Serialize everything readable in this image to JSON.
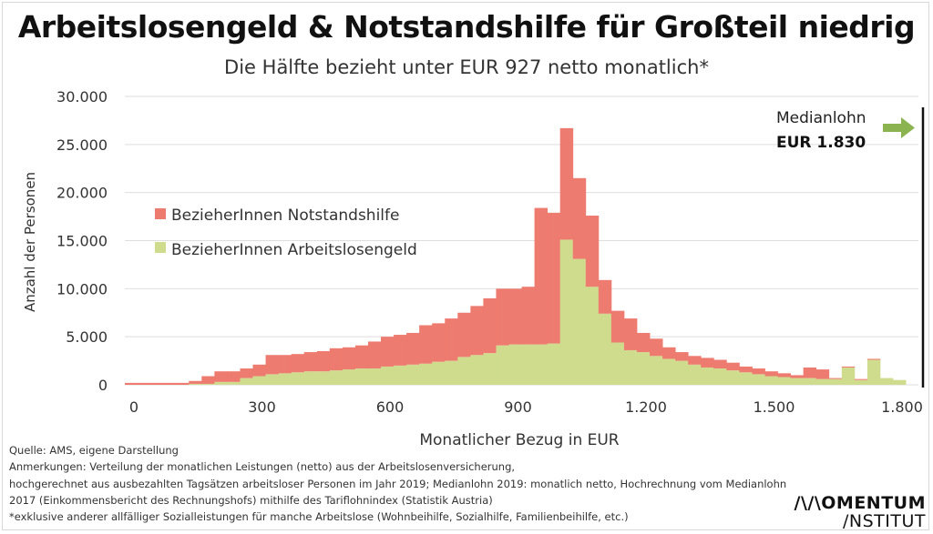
{
  "header": {
    "title": "Arbeitslosengeld & Notstandshilfe für Großteil niedrig",
    "subtitle": "Die Hälfte bezieht unter EUR 927 netto monatlich*"
  },
  "chart_data": {
    "type": "bar",
    "stacked": true,
    "title": "Arbeitslosengeld & Notstandshilfe für Großteil niedrig",
    "subtitle": "Die Hälfte bezieht unter EUR 927 netto monatlich*",
    "xlabel": "Monatlicher Bezug in EUR",
    "ylabel": "Anzahl der Personen",
    "xlim": [
      0,
      1860
    ],
    "ylim": [
      0,
      30000
    ],
    "bin_width": 30,
    "x_ticks": [
      0,
      300,
      600,
      900,
      1200,
      1500,
      1800
    ],
    "x_tick_labels": [
      "0",
      "300",
      "600",
      "900",
      "1.200",
      "1.500",
      "1.800"
    ],
    "y_ticks": [
      0,
      5000,
      10000,
      15000,
      20000,
      25000,
      30000
    ],
    "y_tick_labels": [
      "0",
      "5.000",
      "10.000",
      "15.000",
      "20.000",
      "25.000",
      "30.000"
    ],
    "grid": true,
    "legend_position": "left",
    "x": [
      0,
      30,
      60,
      90,
      120,
      150,
      180,
      210,
      240,
      270,
      300,
      330,
      360,
      390,
      420,
      450,
      480,
      510,
      540,
      570,
      600,
      630,
      660,
      690,
      720,
      750,
      780,
      810,
      840,
      870,
      900,
      930,
      960,
      990,
      1020,
      1050,
      1080,
      1110,
      1140,
      1170,
      1200,
      1230,
      1260,
      1290,
      1320,
      1350,
      1380,
      1410,
      1440,
      1470,
      1500,
      1530,
      1560,
      1590,
      1620,
      1650,
      1680,
      1710,
      1740,
      1770,
      1800
    ],
    "series": [
      {
        "name": "BezieherInnen Arbeitslosengeld",
        "color": "#cfdc8e",
        "values": [
          0,
          0,
          0,
          0,
          0,
          100,
          100,
          300,
          300,
          700,
          900,
          1100,
          1200,
          1300,
          1400,
          1400,
          1500,
          1600,
          1700,
          1700,
          1900,
          2000,
          2100,
          2200,
          2400,
          2500,
          2900,
          3100,
          3300,
          4100,
          4200,
          4200,
          4200,
          4300,
          15100,
          13100,
          10200,
          7400,
          4400,
          3600,
          3400,
          3000,
          2700,
          2500,
          2100,
          1800,
          1700,
          1500,
          1300,
          1100,
          900,
          800,
          700,
          700,
          600,
          600,
          1800,
          500,
          2600,
          700,
          500
        ],
        "annotations": []
      },
      {
        "name": "BezieherInnen Notstandshilfe",
        "color": "#ee7b6f",
        "values": [
          200,
          200,
          200,
          200,
          200,
          300,
          800,
          1100,
          1100,
          1000,
          1200,
          2000,
          1900,
          1900,
          2000,
          2100,
          2300,
          2300,
          2400,
          2800,
          3100,
          3200,
          3300,
          4000,
          4000,
          4400,
          4600,
          5100,
          5700,
          5900,
          5800,
          6000,
          14200,
          13600,
          11600,
          8400,
          7400,
          3500,
          3300,
          3300,
          2000,
          1800,
          1200,
          900,
          900,
          1000,
          900,
          800,
          600,
          600,
          500,
          400,
          300,
          1100,
          1000,
          100,
          100,
          100,
          100,
          0,
          0
        ]
      }
    ],
    "annotations": [
      {
        "text": "Medianlohn",
        "value_text": "EUR 1.830",
        "x": 1830,
        "arrow": "right",
        "arrow_color": "#8bb451"
      }
    ]
  },
  "legend": [
    {
      "label": "BezieherInnen Notstandshilfe",
      "color": "#ee7b6f"
    },
    {
      "label": "BezieherInnen Arbeitslosengeld",
      "color": "#cfdc8e"
    }
  ],
  "median": {
    "label": "Medianlohn",
    "value": "EUR 1.830"
  },
  "notes": {
    "source": "Quelle: AMS, eigene Darstellung",
    "line1": "Anmerkungen: Verteilung der monatlichen Leistungen (netto) aus der Arbeitslosenversicherung,",
    "line2": "hochgerechnet aus ausbezahlten Tagsätzen arbeitsloser Personen im Jahr 2019;  Medianlohn 2019: monatlich netto, Hochrechnung vom Medianlohn",
    "line3": "2017 (Einkommensbericht des Rechnungshofs) mithilfe des Tariflohnindex (Statistik Austria)",
    "line4": "*exklusive anderer allfälliger Sozialleistungen für manche Arbeitslose (Wohnbeihilfe, Sozialhilfe, Familienbeihilfe, etc.)"
  },
  "logo": {
    "line1": "/\\/\\OMENTUM",
    "line2": "/NSTITUT"
  }
}
